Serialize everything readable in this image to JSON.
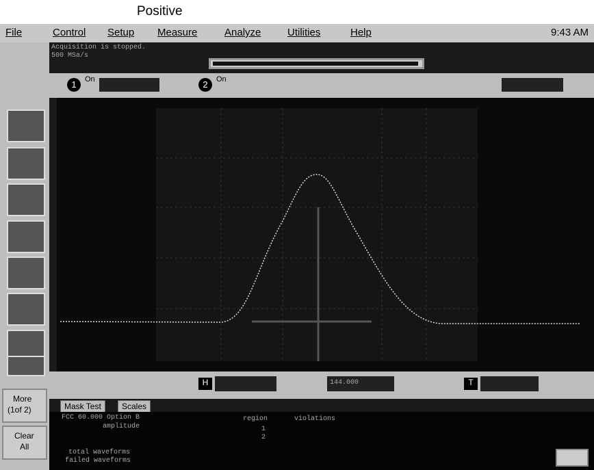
{
  "header": {
    "title": "Positive"
  },
  "menu": [
    "File",
    "Control",
    "Setup",
    "Measure",
    "Analyze",
    "Utilities",
    "Help"
  ],
  "clock": "9:43 AM",
  "status": [
    "Acquisition is stopped.",
    "500 MSa/s"
  ],
  "channels": [
    {
      "number": "1",
      "on": "On"
    },
    {
      "number": "2",
      "on": "On"
    }
  ],
  "sidebar": {
    "more": "More",
    "page": "(1of 2)",
    "clear": "Clear",
    "all": "All"
  },
  "controls": {
    "h": "H",
    "delay": "144.000",
    "t": "T"
  },
  "tabs": [
    "Mask Test",
    "Scales"
  ],
  "panel": {
    "test": "FCC 60.000 Option B",
    "region": "region",
    "violations": "violations",
    "amplitude": "amplitude",
    "r1": "1",
    "r2": "2",
    "total": "total waveforms",
    "failed": "failed waveforms"
  }
}
